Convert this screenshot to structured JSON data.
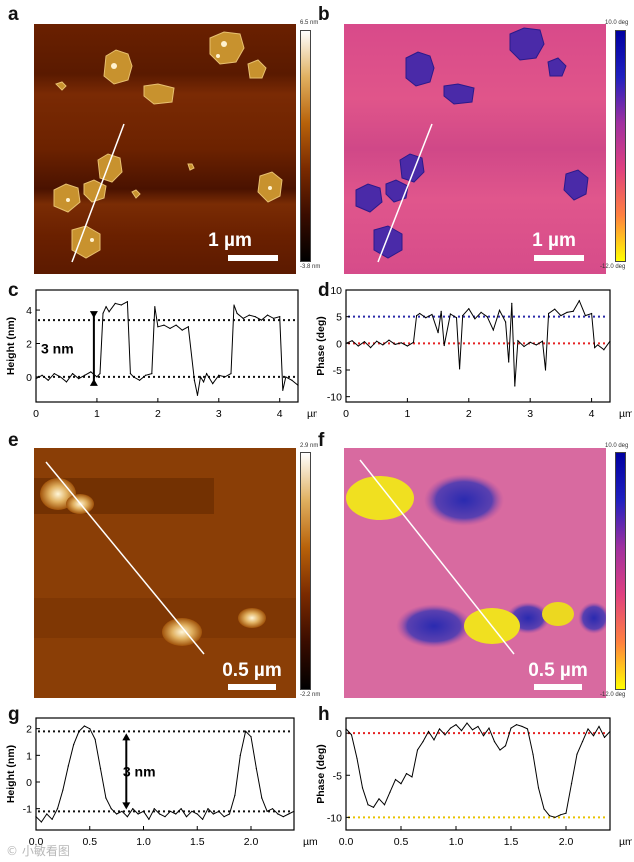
{
  "panels": {
    "a": {
      "letter": "a",
      "scale": "1 µm",
      "cbar_max": "6.5 nm",
      "cbar_min": "-3.8 nm"
    },
    "b": {
      "letter": "b",
      "scale": "1 µm",
      "cbar_max": "10.0 deg",
      "cbar_min": "-12.0 deg"
    },
    "c": {
      "letter": "c",
      "annotation": "3 nm"
    },
    "d": {
      "letter": "d"
    },
    "e": {
      "letter": "e",
      "scale": "0.5 µm",
      "cbar_max": "2.9 nm",
      "cbar_min": "-2.2 nm"
    },
    "f": {
      "letter": "f",
      "scale": "0.5 µm",
      "cbar_max": "10.0 deg",
      "cbar_min": "-12.0 deg"
    },
    "g": {
      "letter": "g",
      "annotation": "3 nm"
    },
    "h": {
      "letter": "h"
    }
  },
  "colors": {
    "height_map": [
      "#000000",
      "#3a0c00",
      "#7a2a00",
      "#b8620a",
      "#e0b060",
      "#ffffff"
    ],
    "phase_map": [
      "#ffff00",
      "#ff8040",
      "#e04080",
      "#a030a0",
      "#2020c0",
      "#0000a0"
    ],
    "red_dotted": "#e52222",
    "blue_dotted": "#2a2aa8",
    "yellow_dotted": "#e8c200",
    "black_dotted": "#111111"
  },
  "watermark": "© 小敏看图",
  "chart_data": [
    {
      "type": "line",
      "panel": "c",
      "xlabel": "µm",
      "ylabel": "Height (nm)",
      "xlim": [
        0,
        4.3
      ],
      "ylim": [
        -1.5,
        5.2
      ],
      "xticks": [
        0,
        1,
        2,
        3,
        4
      ],
      "yticks": [
        0,
        2,
        4
      ],
      "reference_lines": [
        0,
        3.4
      ],
      "annotation": "3 nm",
      "x": [
        0,
        0.1,
        0.2,
        0.3,
        0.4,
        0.5,
        0.6,
        0.7,
        0.8,
        0.9,
        1.0,
        1.05,
        1.1,
        1.15,
        1.2,
        1.3,
        1.4,
        1.5,
        1.55,
        1.6,
        1.7,
        1.8,
        1.9,
        1.95,
        2.0,
        2.1,
        2.2,
        2.3,
        2.4,
        2.5,
        2.6,
        2.65,
        2.7,
        2.75,
        2.8,
        2.9,
        3.0,
        3.1,
        3.2,
        3.25,
        3.3,
        3.4,
        3.5,
        3.6,
        3.7,
        3.8,
        3.9,
        4.0,
        4.05,
        4.1,
        4.2,
        4.3
      ],
      "y": [
        -0.1,
        0.1,
        -0.2,
        0.2,
        0.0,
        -0.3,
        0.2,
        -0.1,
        0.1,
        0.3,
        0.0,
        0.2,
        3.8,
        4.2,
        3.9,
        4.4,
        4.3,
        4.5,
        0.2,
        0.0,
        -0.2,
        0.1,
        0.2,
        4.2,
        3.0,
        3.1,
        2.9,
        3.1,
        2.8,
        3.0,
        -0.2,
        -1.1,
        0.0,
        -0.3,
        0.2,
        -0.4,
        0.1,
        0.0,
        0.2,
        4.3,
        3.8,
        3.5,
        3.7,
        3.6,
        3.4,
        3.7,
        3.5,
        3.6,
        -0.8,
        0.0,
        -0.2,
        -0.5
      ]
    },
    {
      "type": "line",
      "panel": "d",
      "xlabel": "µm",
      "ylabel": "Phase (deg)",
      "xlim": [
        0,
        4.3
      ],
      "ylim": [
        -11,
        10
      ],
      "xticks": [
        0,
        1,
        2,
        3,
        4
      ],
      "yticks": [
        -10,
        -5,
        0,
        5,
        10
      ],
      "reference_lines": [
        5,
        0
      ],
      "x": [
        0,
        0.1,
        0.2,
        0.3,
        0.4,
        0.5,
        0.6,
        0.7,
        0.8,
        0.9,
        1.0,
        1.1,
        1.15,
        1.2,
        1.3,
        1.4,
        1.5,
        1.55,
        1.6,
        1.7,
        1.8,
        1.85,
        1.9,
        2.0,
        2.1,
        2.2,
        2.3,
        2.4,
        2.5,
        2.6,
        2.65,
        2.7,
        2.75,
        2.8,
        2.9,
        3.0,
        3.1,
        3.2,
        3.25,
        3.3,
        3.4,
        3.5,
        3.6,
        3.7,
        3.8,
        3.9,
        4.0,
        4.05,
        4.1,
        4.2,
        4.3
      ],
      "y": [
        0,
        0.5,
        -0.5,
        0.3,
        -0.8,
        0.4,
        -0.3,
        0.6,
        -0.2,
        0.1,
        -0.5,
        0.2,
        5.2,
        5.6,
        4.8,
        5.4,
        2.0,
        6.0,
        -0.4,
        5.5,
        4.8,
        -4.8,
        5.2,
        6.5,
        4.6,
        5.8,
        5.0,
        2.5,
        6.2,
        4.0,
        -3.5,
        7.5,
        -8.0,
        0.5,
        -0.6,
        0.2,
        -0.3,
        0.4,
        -5.0,
        5.6,
        6.4,
        5.2,
        5.8,
        6.0,
        8.0,
        5.2,
        5.6,
        -0.8,
        -0.3,
        -1.2,
        0.4
      ]
    },
    {
      "type": "line",
      "panel": "g",
      "xlabel": "µm",
      "ylabel": "Height (nm)",
      "xlim": [
        0,
        2.4
      ],
      "ylim": [
        -1.8,
        2.4
      ],
      "xticks": [
        0.0,
        0.5,
        1.0,
        1.5,
        2.0
      ],
      "yticks": [
        -1,
        0,
        1,
        2
      ],
      "reference_lines": [
        1.9,
        -1.1
      ],
      "annotation": "3 nm",
      "x": [
        0.0,
        0.05,
        0.1,
        0.15,
        0.2,
        0.25,
        0.3,
        0.35,
        0.4,
        0.45,
        0.5,
        0.55,
        0.6,
        0.65,
        0.7,
        0.75,
        0.8,
        0.85,
        0.9,
        0.95,
        1.0,
        1.05,
        1.1,
        1.15,
        1.2,
        1.25,
        1.3,
        1.35,
        1.4,
        1.45,
        1.5,
        1.55,
        1.6,
        1.65,
        1.7,
        1.75,
        1.8,
        1.85,
        1.9,
        1.95,
        2.0,
        2.05,
        2.1,
        2.15,
        2.2,
        2.25,
        2.3,
        2.35,
        2.4
      ],
      "y": [
        -1.3,
        -1.5,
        -1.2,
        -1.4,
        -1.0,
        -0.3,
        0.6,
        1.4,
        1.9,
        2.1,
        2.0,
        1.6,
        0.5,
        -0.6,
        -1.0,
        -1.2,
        -1.1,
        -1.3,
        -1.0,
        -1.2,
        -1.1,
        -1.4,
        -1.0,
        -1.2,
        -1.3,
        -1.1,
        -1.2,
        -1.0,
        -1.3,
        -1.1,
        -1.2,
        -1.4,
        -1.0,
        -1.2,
        -1.1,
        -1.3,
        -1.2,
        -0.5,
        1.0,
        1.9,
        1.7,
        0.5,
        -0.6,
        -1.1,
        -1.0,
        -1.2,
        -1.3,
        -1.2,
        -1.1
      ]
    },
    {
      "type": "line",
      "panel": "h",
      "xlabel": "µm",
      "ylabel": "Phase (deg)",
      "xlim": [
        0,
        2.4
      ],
      "ylim": [
        -11.5,
        1.8
      ],
      "xticks": [
        0.0,
        0.5,
        1.0,
        1.5,
        2.0
      ],
      "yticks": [
        -10,
        -5,
        0
      ],
      "reference_lines": [
        0,
        -10
      ],
      "x": [
        0.0,
        0.05,
        0.1,
        0.15,
        0.2,
        0.25,
        0.3,
        0.35,
        0.4,
        0.45,
        0.5,
        0.55,
        0.6,
        0.65,
        0.7,
        0.75,
        0.8,
        0.85,
        0.9,
        0.95,
        1.0,
        1.05,
        1.1,
        1.15,
        1.2,
        1.25,
        1.3,
        1.35,
        1.4,
        1.45,
        1.5,
        1.55,
        1.6,
        1.65,
        1.7,
        1.75,
        1.8,
        1.85,
        1.9,
        1.95,
        2.0,
        2.05,
        2.1,
        2.15,
        2.2,
        2.25,
        2.3,
        2.35,
        2.4
      ],
      "y": [
        0.5,
        -0.2,
        -3.0,
        -6.5,
        -8.5,
        -8.8,
        -7.8,
        -8.5,
        -7.0,
        -5.5,
        -6.0,
        -4.8,
        -5.2,
        -2.0,
        -1.0,
        0.2,
        -0.8,
        0.5,
        -0.2,
        0.6,
        1.0,
        0.3,
        1.2,
        0.4,
        0.8,
        -0.3,
        0.6,
        -1.0,
        -2.0,
        -1.5,
        0.6,
        1.0,
        0.8,
        0.5,
        -2.5,
        -6.5,
        -9.0,
        -9.8,
        -10.0,
        -9.7,
        -9.5,
        -6.0,
        -2.5,
        -1.0,
        0.5,
        -0.3,
        0.8,
        -0.5,
        0.2
      ]
    }
  ]
}
